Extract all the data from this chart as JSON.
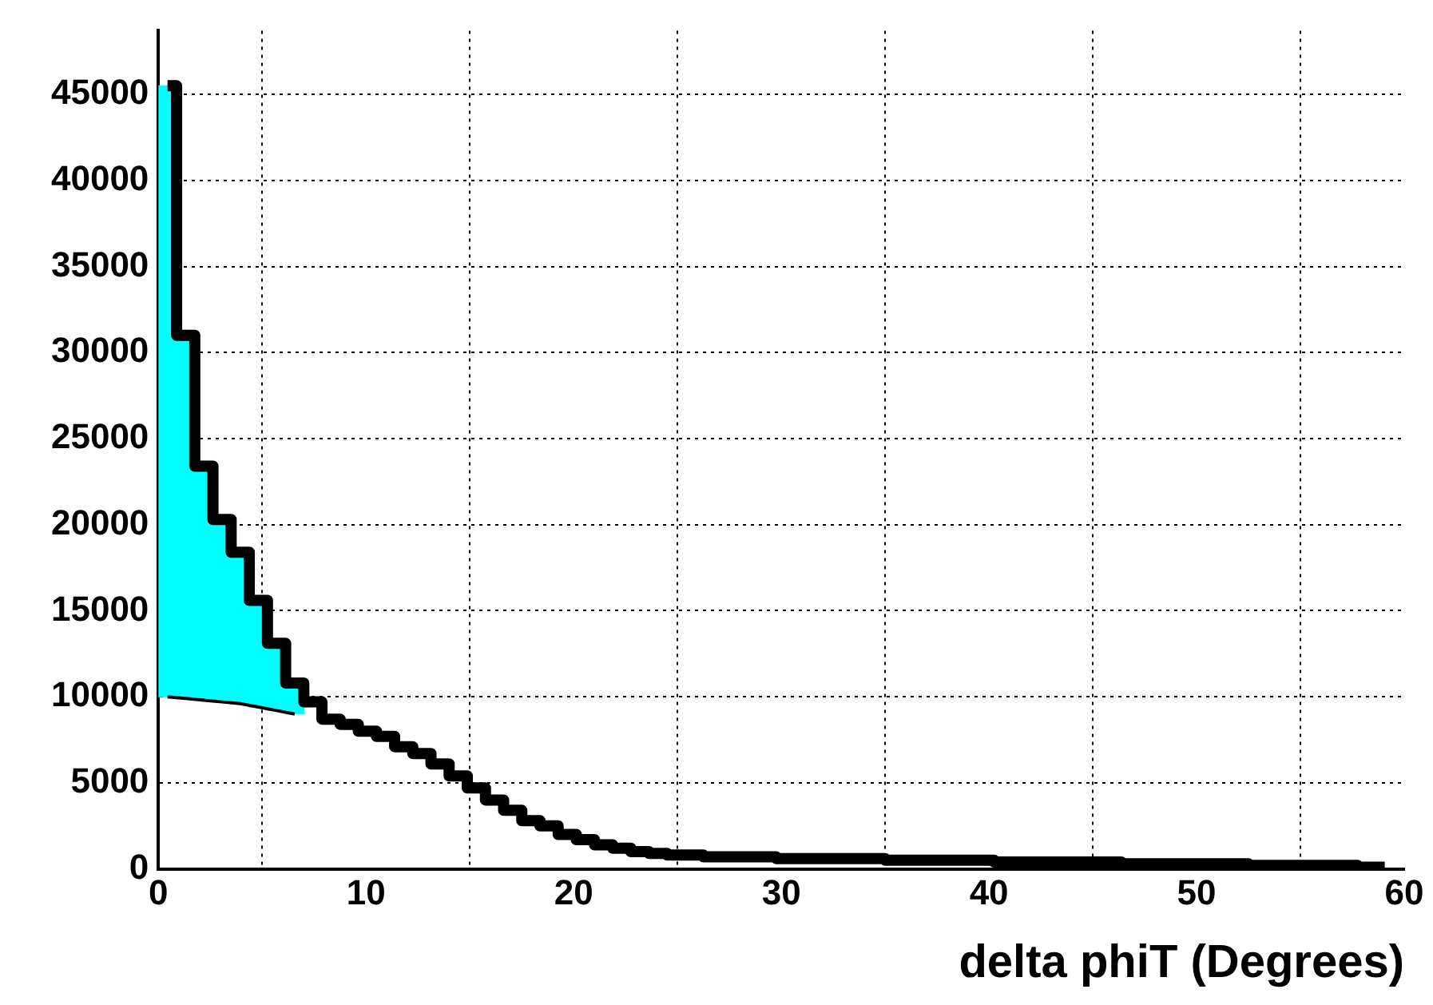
{
  "chart_data": {
    "type": "histogram",
    "xlabel": "delta phiT (Degrees)",
    "bins": [
      0,
      0.875,
      1.75,
      2.625,
      3.5,
      4.375,
      5.25,
      6.125,
      7,
      7.875,
      8.75,
      9.625,
      10.5,
      11.375,
      12.25,
      13.125,
      14,
      14.875,
      15.75,
      16.625,
      17.5,
      18.375,
      19.25,
      20.125,
      21,
      21.875,
      22.75,
      23.625,
      24.5,
      25.375,
      26.25,
      27.125,
      28,
      28.875,
      29.75,
      30.625,
      31.5,
      32.375,
      33.25,
      34.125,
      35,
      35.875,
      36.75,
      37.625,
      38.5,
      39.375,
      40.25,
      41.125,
      42,
      42.875,
      43.75,
      44.625,
      45.5,
      46.375,
      47.25,
      48.125,
      49,
      49.875,
      50.75,
      51.625,
      52.5,
      53.375,
      54.25,
      55.125,
      56,
      56.875,
      57.75,
      58.625,
      59.5
    ],
    "series": [
      {
        "color": "#00ffff",
        "base": [
          10000,
          9900,
          9800,
          9700,
          9600,
          9400,
          9200,
          9000,
          null,
          null,
          null,
          null,
          null,
          null,
          null,
          null,
          null,
          null,
          null,
          null,
          null,
          null,
          null,
          null,
          null,
          null,
          null,
          null,
          null,
          null,
          null,
          null,
          null,
          null,
          null,
          null,
          null,
          null,
          null,
          null,
          null,
          null,
          null,
          null,
          null,
          null,
          null,
          null,
          null,
          null,
          null,
          null,
          null,
          null,
          null,
          null,
          null,
          null,
          null,
          null,
          null,
          null,
          null,
          null,
          null,
          null,
          null,
          null
        ],
        "values": [
          35500,
          21100,
          13600,
          10600,
          8800,
          6200,
          3900,
          1800,
          null,
          null,
          null,
          null,
          null,
          null,
          null,
          null,
          null,
          null,
          null,
          null,
          null,
          null,
          null,
          null,
          null,
          null,
          null,
          null,
          null,
          null,
          null,
          null,
          null,
          null,
          null,
          null,
          null,
          null,
          null,
          null,
          null,
          null,
          null,
          null,
          null,
          null,
          null,
          null,
          null,
          null,
          null,
          null,
          null,
          null,
          null,
          null,
          null,
          null,
          null,
          null,
          null,
          null,
          null,
          null,
          null,
          null,
          null,
          null
        ]
      },
      {
        "type": "line",
        "color": "#000000",
        "x": [
          0.4375,
          1.3125,
          2.1875,
          3.0625,
          3.9375,
          4.8125,
          5.6875,
          6.5625
        ],
        "values": [
          10000,
          9900,
          9800,
          9700,
          9600,
          9400,
          9200,
          9000
        ]
      },
      {
        "type": "step",
        "color": "#000000",
        "x": [
          0.4375,
          1.3125,
          2.1875,
          3.0625,
          3.9375,
          4.8125,
          5.6875,
          6.5625,
          7.4375,
          8.3125,
          9.1875,
          10.0625,
          10.9375,
          11.8125,
          12.6875,
          13.5625,
          14.4375,
          15.3125,
          16.1875,
          17.0625,
          17.9375,
          18.8125,
          19.6875,
          20.5625,
          21.4375,
          22.3125,
          23.1875,
          24.0625,
          24.9375,
          25.8125,
          26.6875,
          27.5625,
          28.4375,
          29.3125,
          30.1875,
          31.0625,
          31.9375,
          32.8125,
          33.6875,
          34.5625,
          35.4375,
          36.3125,
          37.1875,
          38.0625,
          38.9375,
          39.8125,
          40.6875,
          41.5625,
          42.4375,
          43.3125,
          44.1875,
          45.0625,
          45.9375,
          46.8125,
          47.6875,
          48.5625,
          49.4375,
          50.3125,
          51.1875,
          52.0625,
          52.9375,
          53.8125,
          54.6875,
          55.5625,
          56.4375,
          57.3125,
          58.1875,
          59.0625
        ],
        "values": [
          45500,
          31000,
          23400,
          20300,
          18400,
          15600,
          13100,
          10800,
          9700,
          8700,
          8400,
          8000,
          7700,
          7100,
          6700,
          6100,
          5400,
          4700,
          4000,
          3400,
          2800,
          2500,
          2000,
          1700,
          1400,
          1200,
          1000,
          900,
          800,
          800,
          700,
          700,
          700,
          700,
          600,
          600,
          600,
          600,
          600,
          600,
          500,
          500,
          500,
          500,
          500,
          500,
          400,
          400,
          400,
          400,
          400,
          400,
          400,
          300,
          300,
          300,
          300,
          300,
          300,
          300,
          200,
          200,
          200,
          200,
          200,
          200,
          100,
          100
        ]
      }
    ],
    "xlim": [
      0,
      60
    ],
    "xticks": [
      0,
      10,
      20,
      30,
      40,
      50,
      60
    ],
    "ylim": [
      0,
      48700
    ],
    "yticks": [
      0,
      5000,
      10000,
      15000,
      20000,
      25000,
      30000,
      35000,
      40000,
      45000
    ],
    "grid": true,
    "legend": false
  }
}
